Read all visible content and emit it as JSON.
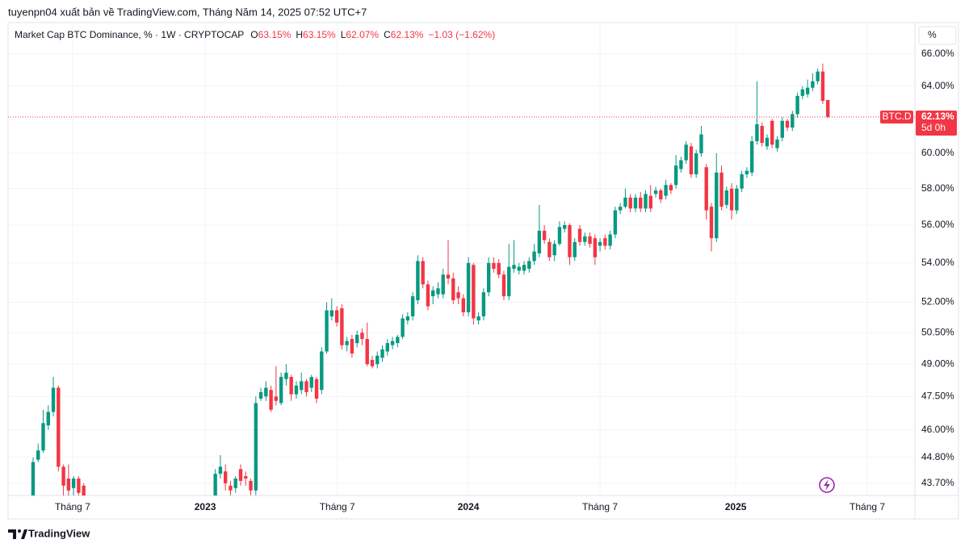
{
  "header": {
    "publisher": "tuyenpn04 xuất bản về TradingView.com, Tháng Năm 14, 2025 07:52 UTC+7",
    "brand": "TradingView",
    "unit_button": "%"
  },
  "chart_data": {
    "type": "candlestick",
    "title": "Market Cap BTC Dominance, % · 1W · CRYPTOCAP",
    "ohlc": [
      {
        "key": "O",
        "value": "63.15%"
      },
      {
        "key": "H",
        "value": "63.15%"
      },
      {
        "key": "L",
        "value": "62.07%"
      },
      {
        "key": "C",
        "value": "62.13%"
      }
    ],
    "change": "−1.03 (−1.62%)",
    "symbol_tag": "BTC.D",
    "last_price": {
      "value": 62.13,
      "label": "62.13%"
    },
    "countdown": "5d 0h",
    "up_color": "#089981",
    "down_color": "#f23645",
    "log_scale": true,
    "grid": true,
    "xlim": [
      -4.94,
      174.2
    ],
    "xticks": [
      {
        "value": 7.8,
        "label": "Tháng 7"
      },
      {
        "value": 34.0,
        "label": "2023"
      },
      {
        "value": 60.1,
        "label": "Tháng 7"
      },
      {
        "value": 86.0,
        "label": "2024"
      },
      {
        "value": 112.0,
        "label": "Tháng 7"
      },
      {
        "value": 138.8,
        "label": "2025"
      },
      {
        "value": 164.8,
        "label": "Tháng 7"
      }
    ],
    "ylim": [
      43.19,
      67.92
    ],
    "yticks": [
      {
        "value": 43.7,
        "label": "43.70%"
      },
      {
        "value": 44.8,
        "label": "44.80%"
      },
      {
        "value": 46,
        "label": "46.00%"
      },
      {
        "value": 47.5,
        "label": "47.50%"
      },
      {
        "value": 49,
        "label": "49.00%"
      },
      {
        "value": 50.5,
        "label": "50.50%"
      },
      {
        "value": 52,
        "label": "52.00%"
      },
      {
        "value": 54,
        "label": "54.00%"
      },
      {
        "value": 56,
        "label": "56.00%"
      },
      {
        "value": 58,
        "label": "58.00%"
      },
      {
        "value": 60,
        "label": "60.00%"
      },
      {
        "value": 64,
        "label": "64.00%"
      },
      {
        "value": 66,
        "label": "66.00%"
      }
    ],
    "x": [
      0,
      1,
      2,
      3,
      4,
      5,
      6,
      7,
      8,
      9,
      10,
      36,
      37,
      38,
      39,
      40,
      41,
      42,
      43,
      44,
      45,
      46,
      47,
      48,
      49,
      50,
      51,
      52,
      53,
      54,
      55,
      56,
      57,
      58,
      59,
      60,
      61,
      62,
      63,
      64,
      65,
      66,
      67,
      68,
      69,
      70,
      71,
      72,
      73,
      74,
      75,
      76,
      77,
      78,
      79,
      80,
      81,
      82,
      83,
      84,
      85,
      86,
      87,
      88,
      89,
      90,
      91,
      92,
      93,
      94,
      95,
      96,
      97,
      98,
      99,
      100,
      101,
      102,
      103,
      104,
      105,
      106,
      107,
      108,
      109,
      110,
      111,
      112,
      113,
      114,
      115,
      116,
      117,
      118,
      119,
      120,
      121,
      122,
      123,
      124,
      125,
      126,
      127,
      128,
      129,
      130,
      131,
      132,
      133,
      134,
      135,
      136,
      137,
      138,
      139,
      140,
      141,
      142,
      143,
      144,
      145,
      146,
      147,
      148,
      149,
      150,
      151,
      152,
      153,
      154,
      155,
      156,
      157
    ],
    "open": [
      42.5,
      44.7,
      45.1,
      46.2,
      46.8,
      47.9,
      44.4,
      43.9,
      43.5,
      43.9,
      43.6,
      42.5,
      44.1,
      44.2,
      43.6,
      43.5,
      44.3,
      44.0,
      43.8,
      43.4,
      47.4,
      47.5,
      47.8,
      47.5,
      47.2,
      48.3,
      48.4,
      47.6,
      47.8,
      48.2,
      47.9,
      48.3,
      47.8,
      49.6,
      51.3,
      51.6,
      51.7,
      49.9,
      50.2,
      50.0,
      50.5,
      50.2,
      49.2,
      49.0,
      49.3,
      49.6,
      49.9,
      50.0,
      50.3,
      51.1,
      51.3,
      52.1,
      54.1,
      52.9,
      52.3,
      52.4,
      52.4,
      53.4,
      53.2,
      52.5,
      52.2,
      51.5,
      53.9,
      51.1,
      51.3,
      52.5,
      54.0,
      54.0,
      53.4,
      52.3,
      53.7,
      53.6,
      53.6,
      53.7,
      54.1,
      54.5,
      55.7,
      55.1,
      54.4,
      55.0,
      55.8,
      56.0,
      54.3,
      55.8,
      55.1,
      55.4,
      55.3,
      54.9,
      55.3,
      54.9,
      55.5,
      56.8,
      57.0,
      57.5,
      56.9,
      57.5,
      56.9,
      57.6,
      57.7,
      57.9,
      57.6,
      58.2,
      58.2,
      59.1,
      59.6,
      60.4,
      58.8,
      60.0,
      59.2,
      57.0,
      55.3,
      58.9,
      57.1,
      58.0,
      56.8,
      58.0,
      58.8,
      58.9,
      60.7,
      61.6,
      60.4,
      61.9,
      60.3,
      60.9,
      61.9,
      61.5,
      62.3,
      63.4,
      63.5,
      63.9,
      64.3,
      64.9,
      63.15
    ],
    "high": [
      44.8,
      45.4,
      46.9,
      47.1,
      48.4,
      48.0,
      44.5,
      44.5,
      44.0,
      44.0,
      43.7,
      44.3,
      44.9,
      44.5,
      43.8,
      44.0,
      44.5,
      44.2,
      43.9,
      47.5,
      47.9,
      48.2,
      48.0,
      48.9,
      48.6,
      49.0,
      48.5,
      48.2,
      48.6,
      48.3,
      48.5,
      48.4,
      49.8,
      52.0,
      52.2,
      51.8,
      51.9,
      50.3,
      50.4,
      50.6,
      50.7,
      51.0,
      49.4,
      49.6,
      49.9,
      50.2,
      50.3,
      50.4,
      51.4,
      51.5,
      52.5,
      54.4,
      54.3,
      53.1,
      52.8,
      53.0,
      53.7,
      55.2,
      53.5,
      52.8,
      52.4,
      54.3,
      54.0,
      51.5,
      52.7,
      54.3,
      54.3,
      54.2,
      53.6,
      55.0,
      55.2,
      54.0,
      54.1,
      54.3,
      55.0,
      57.1,
      56.0,
      55.3,
      55.2,
      56.2,
      56.2,
      56.1,
      55.3,
      56.0,
      55.6,
      55.6,
      55.5,
      55.3,
      55.5,
      55.7,
      57.0,
      57.2,
      58.0,
      57.7,
      57.7,
      57.8,
      57.9,
      58.2,
      58.1,
      58.0,
      58.5,
      58.3,
      59.9,
      59.8,
      60.7,
      60.6,
      60.2,
      61.6,
      59.4,
      57.2,
      60.0,
      59.3,
      58.1,
      58.3,
      58.2,
      59.0,
      59.2,
      61.0,
      64.3,
      61.8,
      61.1,
      62.0,
      61.0,
      62.1,
      62.0,
      62.5,
      63.6,
      64.0,
      64.4,
      64.8,
      65.1,
      65.4,
      63.15
    ],
    "low": [
      42.0,
      44.6,
      45.0,
      46.0,
      46.6,
      44.2,
      43.0,
      43.0,
      43.1,
      43.0,
      42.8,
      42.3,
      43.9,
      43.4,
      43.2,
      43.3,
      43.6,
      43.6,
      43.2,
      43.2,
      47.3,
      47.3,
      46.8,
      47.1,
      47.1,
      48.0,
      47.3,
      47.4,
      47.6,
      47.5,
      47.7,
      47.2,
      47.6,
      49.5,
      51.1,
      50.8,
      49.7,
      49.6,
      49.3,
      49.8,
      49.9,
      48.9,
      48.8,
      48.8,
      49.1,
      49.4,
      49.7,
      49.8,
      50.2,
      50.9,
      51.1,
      51.9,
      52.7,
      51.6,
      51.9,
      52.2,
      52.2,
      52.9,
      51.9,
      51.9,
      51.3,
      51.3,
      50.9,
      50.9,
      51.1,
      52.3,
      53.5,
      53.2,
      52.1,
      52.1,
      53.5,
      53.4,
      53.4,
      53.5,
      53.9,
      54.3,
      55.0,
      54.1,
      54.1,
      54.9,
      55.6,
      53.9,
      54.1,
      54.9,
      54.9,
      54.8,
      53.9,
      54.6,
      54.7,
      54.7,
      55.3,
      56.6,
      56.9,
      56.7,
      56.7,
      56.7,
      56.7,
      56.7,
      57.5,
      57.2,
      57.4,
      57.7,
      58.0,
      58.9,
      59.4,
      58.6,
      58.6,
      59.8,
      56.3,
      54.6,
      55.1,
      56.8,
      56.9,
      56.3,
      56.6,
      57.8,
      58.6,
      58.7,
      60.5,
      60.4,
      60.2,
      60.3,
      60.1,
      60.7,
      61.3,
      61.3,
      62.1,
      63.2,
      63.3,
      63.7,
      64.1,
      62.9,
      62.07
    ],
    "close": [
      44.6,
      45.1,
      46.3,
      46.8,
      47.9,
      44.4,
      43.6,
      43.4,
      43.9,
      43.3,
      43.0,
      44.1,
      44.4,
      43.7,
      43.4,
      43.9,
      43.8,
      43.9,
      43.4,
      47.2,
      47.7,
      47.9,
      46.9,
      47.3,
      48.4,
      48.6,
      47.6,
      48.0,
      48.2,
      47.7,
      48.4,
      47.4,
      49.6,
      51.6,
      51.6,
      51.0,
      49.9,
      50.1,
      49.5,
      50.4,
      50.2,
      49.0,
      48.9,
      49.4,
      49.7,
      50.0,
      50.1,
      50.3,
      51.2,
      51.3,
      52.3,
      54.1,
      52.9,
      51.8,
      52.6,
      52.7,
      53.4,
      53.2,
      52.1,
      52.2,
      51.5,
      54.0,
      51.2,
      51.3,
      52.5,
      54.0,
      53.7,
      53.4,
      52.3,
      53.8,
      53.9,
      53.8,
      53.9,
      54.1,
      54.6,
      55.7,
      55.2,
      54.3,
      55.0,
      55.9,
      56.0,
      54.3,
      55.1,
      55.1,
      55.4,
      55.0,
      54.3,
      55.1,
      54.9,
      55.5,
      56.8,
      57.0,
      57.5,
      56.9,
      57.5,
      56.9,
      57.7,
      56.9,
      57.9,
      57.4,
      58.2,
      57.9,
      59.3,
      59.6,
      60.5,
      58.8,
      60.0,
      61.1,
      56.8,
      55.3,
      58.9,
      57.0,
      57.9,
      56.8,
      58.0,
      58.8,
      59.0,
      60.7,
      61.7,
      60.6,
      60.9,
      60.5,
      60.8,
      61.9,
      61.5,
      62.3,
      63.4,
      63.8,
      63.9,
      64.3,
      64.9,
      63.1,
      62.13
    ]
  }
}
